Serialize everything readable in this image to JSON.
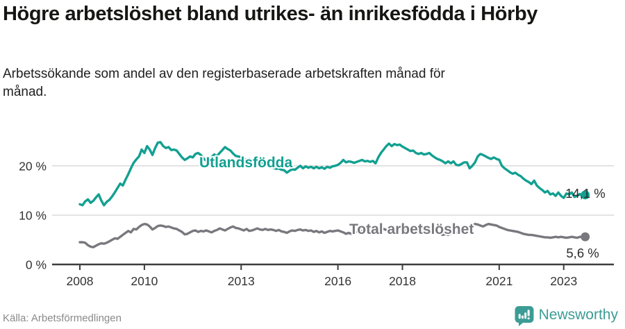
{
  "header": {
    "title": "Högre arbetslöshet bland utrikes- än inrikesfödda i Hörby",
    "subtitle": "Arbetssökande som andel av den registerbaserade arbetskraften månad för månad."
  },
  "footer": {
    "source": "Källa: Arbetsförmedlingen",
    "brand": "Newsworthy",
    "brand_icon": "bar-chart-speech-bubble",
    "brand_color": "#3c9c95"
  },
  "chart_data": {
    "type": "line",
    "frequency": "monthly",
    "x_start_year": 2008,
    "x_start_month": 1,
    "x_end_year": 2023,
    "x_end_month": 9,
    "grid": "horizontal",
    "x_ticks": [
      2008,
      2010,
      2013,
      2016,
      2018,
      2021,
      2023
    ],
    "y_ticks": [
      {
        "value": 0,
        "label": "0 %"
      },
      {
        "value": 10,
        "label": "10 %"
      },
      {
        "value": 20,
        "label": "20 %"
      }
    ],
    "ylim": [
      0,
      26.5
    ],
    "axis_color": "#3d3d3d",
    "grid_color": "#dadada",
    "tick_label_color": "#333333",
    "series": [
      {
        "name": "Total arbetslöshet",
        "color": "#78787e",
        "end_label": "5,6 %",
        "end_value": 5.6,
        "values": [
          4.5,
          4.5,
          4.4,
          3.9,
          3.6,
          3.5,
          3.8,
          4.1,
          4.3,
          4.2,
          4.4,
          4.7,
          5.0,
          5.3,
          5.2,
          5.6,
          6.0,
          6.4,
          6.8,
          6.5,
          7.2,
          7.1,
          7.6,
          8.0,
          8.2,
          8.1,
          7.7,
          7.1,
          7.4,
          7.8,
          7.9,
          7.8,
          7.6,
          7.7,
          7.5,
          7.3,
          7.2,
          6.9,
          6.6,
          6.1,
          6.2,
          6.5,
          6.8,
          6.9,
          6.6,
          6.8,
          6.7,
          6.9,
          6.7,
          6.5,
          6.8,
          7.0,
          7.3,
          7.1,
          6.9,
          7.2,
          7.5,
          7.7,
          7.4,
          7.3,
          7.1,
          6.9,
          7.2,
          6.8,
          6.9,
          7.1,
          7.3,
          7.1,
          7.0,
          7.2,
          7.0,
          7.1,
          7.0,
          6.8,
          7.0,
          6.7,
          6.6,
          6.4,
          6.7,
          6.9,
          6.8,
          7.0,
          7.1,
          6.9,
          7.0,
          6.8,
          6.9,
          6.6,
          6.8,
          6.5,
          6.7,
          6.4,
          6.6,
          6.8,
          6.7,
          6.8,
          6.9,
          6.7,
          6.5,
          6.2,
          6.4,
          6.2,
          6.5,
          6.7,
          6.6,
          6.8,
          6.7,
          6.9,
          6.8,
          6.9,
          6.7,
          6.9,
          7.1,
          7.2,
          7.0,
          7.2,
          7.4,
          7.5,
          7.3,
          7.4,
          7.2,
          7.0,
          6.8,
          6.6,
          6.8,
          6.6,
          6.4,
          6.6,
          6.8,
          6.7,
          6.9,
          6.8,
          6.6,
          6.4,
          6.2,
          6.0,
          6.2,
          6.0,
          6.3,
          6.5,
          6.4,
          6.6,
          6.8,
          7.0,
          7.2,
          7.5,
          7.9,
          8.2,
          8.1,
          7.9,
          7.7,
          8.0,
          8.2,
          8.1,
          8.0,
          7.9,
          7.6,
          7.4,
          7.2,
          7.0,
          6.9,
          6.8,
          6.7,
          6.6,
          6.4,
          6.2,
          6.1,
          6.0,
          6.0,
          5.9,
          5.8,
          5.7,
          5.6,
          5.5,
          5.5,
          5.4,
          5.5,
          5.6,
          5.5,
          5.6,
          5.5,
          5.4,
          5.5,
          5.6,
          5.5,
          5.4,
          5.6,
          5.5,
          5.6
        ]
      },
      {
        "name": "Utlandsfödda",
        "color": "#12a091",
        "end_label": "14,1 %",
        "end_value": 14.1,
        "values": [
          12.2,
          12.0,
          12.8,
          13.2,
          12.5,
          12.9,
          13.6,
          14.2,
          12.9,
          12.0,
          12.7,
          13.1,
          13.8,
          14.6,
          15.5,
          16.4,
          16.0,
          17.2,
          18.3,
          19.5,
          20.6,
          21.3,
          21.9,
          23.3,
          22.6,
          24.0,
          23.3,
          22.2,
          23.6,
          24.7,
          24.8,
          24.0,
          23.6,
          23.8,
          23.2,
          23.3,
          23.1,
          22.4,
          21.7,
          21.2,
          21.5,
          21.9,
          21.7,
          22.4,
          22.6,
          22.2,
          21.5,
          21.0,
          21.3,
          21.8,
          22.3,
          22.0,
          22.6,
          23.2,
          23.8,
          23.4,
          23.1,
          22.5,
          22.0,
          21.9,
          21.7,
          21.4,
          21.2,
          21.4,
          20.9,
          20.8,
          21.0,
          20.7,
          20.5,
          20.3,
          19.9,
          19.7,
          19.6,
          19.4,
          19.5,
          19.2,
          19.1,
          18.6,
          19.0,
          19.3,
          19.2,
          19.6,
          20.0,
          19.5,
          19.9,
          19.6,
          19.8,
          19.5,
          19.8,
          19.5,
          19.7,
          19.4,
          19.8,
          19.6,
          19.9,
          20.0,
          20.2,
          20.6,
          21.2,
          20.7,
          20.9,
          20.8,
          20.6,
          20.8,
          21.0,
          21.2,
          20.9,
          21.0,
          20.8,
          21.0,
          20.5,
          21.7,
          22.6,
          23.3,
          24.0,
          24.5,
          24.0,
          24.4,
          24.2,
          24.3,
          23.9,
          23.6,
          23.3,
          23.0,
          23.1,
          22.6,
          22.4,
          22.6,
          22.3,
          22.4,
          22.6,
          22.1,
          21.7,
          21.4,
          21.2,
          20.9,
          20.5,
          20.9,
          20.5,
          20.9,
          20.2,
          20.1,
          20.4,
          20.7,
          20.7,
          19.5,
          20.0,
          20.7,
          21.9,
          22.4,
          22.2,
          21.9,
          21.6,
          21.4,
          21.7,
          21.4,
          21.2,
          20.0,
          19.5,
          19.1,
          18.7,
          18.4,
          18.6,
          18.2,
          17.9,
          17.4,
          17.0,
          16.7,
          16.3,
          17.0,
          16.0,
          15.5,
          15.1,
          14.6,
          14.9,
          14.2,
          14.4,
          13.9,
          14.6,
          13.9,
          13.5,
          14.4,
          14.2,
          14.6,
          13.7,
          13.9,
          14.3,
          13.8,
          14.1
        ]
      }
    ]
  }
}
